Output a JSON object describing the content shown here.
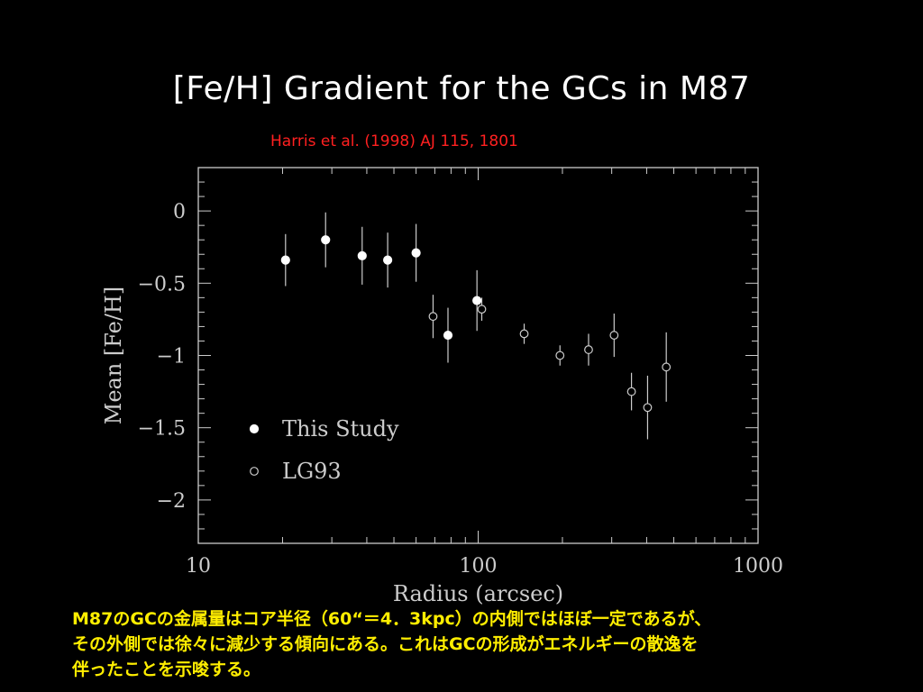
{
  "slide": {
    "title": "[Fe/H] Gradient for the GCs in M87",
    "citation": "Harris et al. (1998) AJ 115, 1801",
    "caption_lines": [
      "M87のGCの金属量はコア半径（60“＝4．3kpc）の内側ではほぼ一定であるが、",
      "その外側では徐々に減少する傾向にある。これはGCの形成がエネルギーの散逸を",
      "伴ったことを示唆する。"
    ]
  },
  "colors": {
    "background": "#000000",
    "title": "#ffffff",
    "citation": "#ff2020",
    "caption": "#ffee00",
    "plot": "#cccccc"
  },
  "chart_data": {
    "type": "scatter",
    "xlabel": "Radius (arcsec)",
    "ylabel": "Mean [Fe/H]",
    "xscale": "log",
    "xlim": [
      10,
      1000
    ],
    "ylim": [
      -2.3,
      0.3
    ],
    "xticks": [
      {
        "value": 10,
        "label": "10"
      },
      {
        "value": 100,
        "label": "100"
      },
      {
        "value": 1000,
        "label": "1000"
      }
    ],
    "yticks": [
      {
        "value": 0,
        "label": "0"
      },
      {
        "value": -0.5,
        "label": "−0.5"
      },
      {
        "value": -1,
        "label": "−1"
      },
      {
        "value": -1.5,
        "label": "−1.5"
      },
      {
        "value": -2,
        "label": "−2"
      }
    ],
    "legend_position": "bottom-left",
    "series": [
      {
        "name": "This Study",
        "marker": "filled-circle",
        "points": [
          {
            "x": 20.5,
            "y": -0.34,
            "err": 0.18
          },
          {
            "x": 28.5,
            "y": -0.2,
            "err": 0.19
          },
          {
            "x": 38.5,
            "y": -0.31,
            "err": 0.2
          },
          {
            "x": 47.5,
            "y": -0.34,
            "err": 0.19
          },
          {
            "x": 60.0,
            "y": -0.29,
            "err": 0.2
          },
          {
            "x": 78.0,
            "y": -0.86,
            "err": 0.19
          },
          {
            "x": 99.0,
            "y": -0.62,
            "err": 0.21
          }
        ]
      },
      {
        "name": "LG93",
        "marker": "open-circle",
        "points": [
          {
            "x": 69.0,
            "y": -0.73,
            "err": 0.15
          },
          {
            "x": 103.0,
            "y": -0.68,
            "err": 0.08
          },
          {
            "x": 146.0,
            "y": -0.85,
            "err": 0.07
          },
          {
            "x": 196.0,
            "y": -1.0,
            "err": 0.07
          },
          {
            "x": 248.0,
            "y": -0.96,
            "err": 0.11
          },
          {
            "x": 306.0,
            "y": -0.86,
            "err": 0.15
          },
          {
            "x": 353.0,
            "y": -1.25,
            "err": 0.13
          },
          {
            "x": 403.0,
            "y": -1.36,
            "err": 0.22
          },
          {
            "x": 470.0,
            "y": -1.08,
            "err": 0.24
          }
        ]
      }
    ]
  }
}
